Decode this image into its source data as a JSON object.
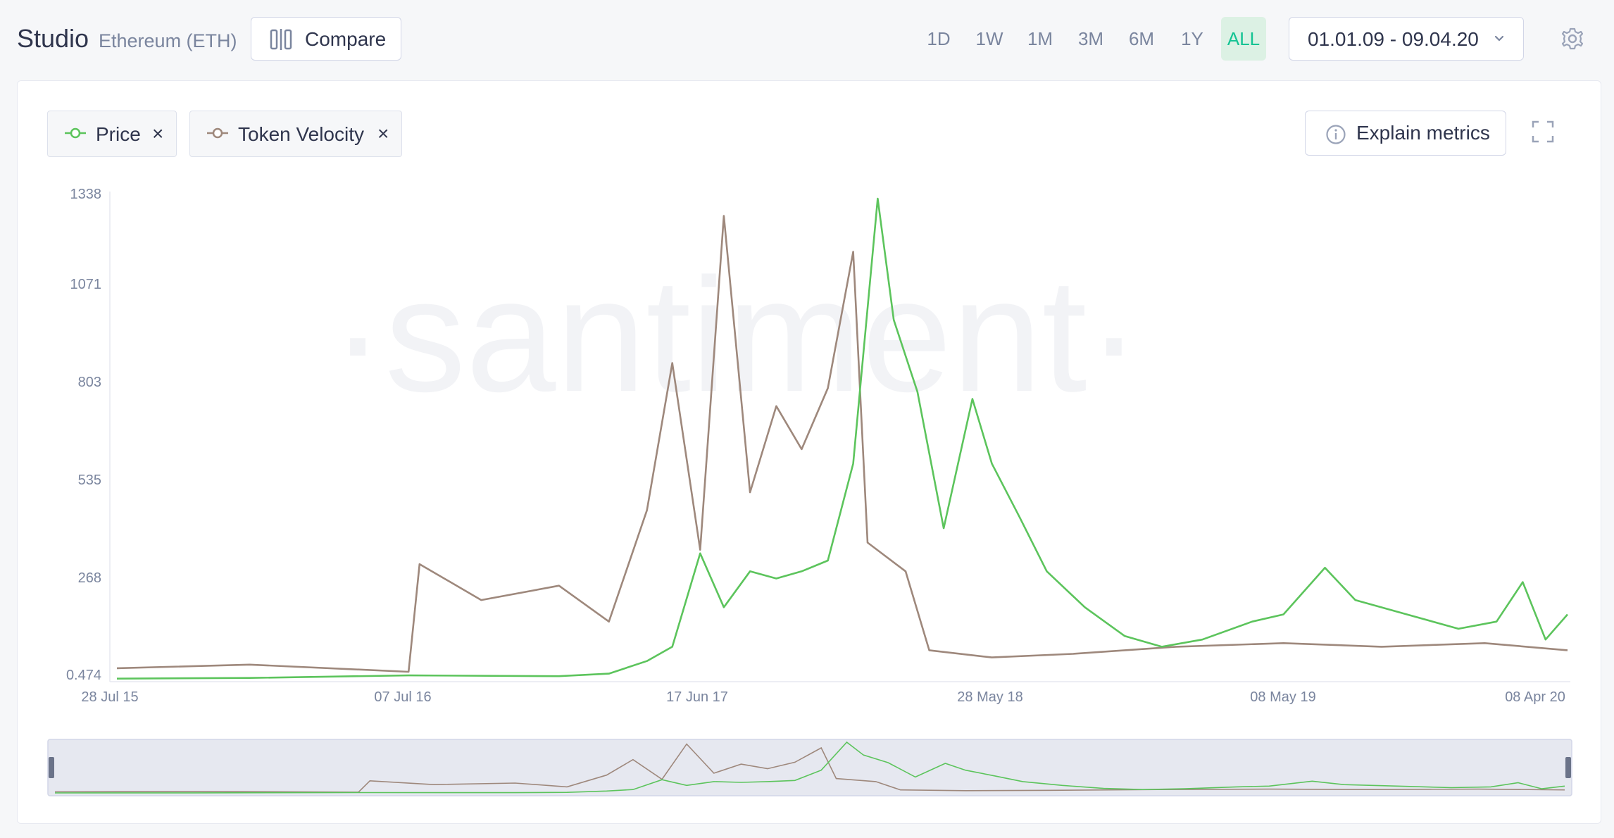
{
  "header": {
    "title": "Studio",
    "asset": "Ethereum (ETH)",
    "compare_label": "Compare",
    "ranges": [
      "1D",
      "1W",
      "1M",
      "3M",
      "6M",
      "1Y",
      "ALL"
    ],
    "active_range": "ALL",
    "date_range": "01.01.09 - 09.04.20"
  },
  "toolbar": {
    "explain_label": "Explain metrics"
  },
  "metrics": [
    {
      "label": "Price",
      "color": "#5cc45c",
      "remove": "×"
    },
    {
      "label": "Token Velocity",
      "color": "#9e887c",
      "remove": "×"
    }
  ],
  "watermark": "·santiment·",
  "colors": {
    "price": "#5cc45c",
    "velocity": "#9e887c",
    "accent": "#14c393",
    "navigator_bg": "#e6e8f0"
  },
  "chart_data": {
    "type": "line",
    "x_ticks": [
      "28 Jul 15",
      "07 Jul 16",
      "17 Jun 17",
      "28 May 18",
      "08 May 19",
      "08 Apr 20"
    ],
    "y_ticks": [
      "1338",
      "1071",
      "803",
      "535",
      "268",
      "0.474"
    ],
    "ylim": [
      0.474,
      1338
    ],
    "series": [
      {
        "name": "Price",
        "color": "#5cc45c",
        "x": [
          "2015-07-28",
          "2016-01-01",
          "2016-07-07",
          "2017-01-01",
          "2017-03-01",
          "2017-04-15",
          "2017-05-15",
          "2017-06-17",
          "2017-07-15",
          "2017-08-15",
          "2017-09-15",
          "2017-10-15",
          "2017-11-15",
          "2017-12-15",
          "2018-01-13",
          "2018-02-01",
          "2018-03-01",
          "2018-04-01",
          "2018-05-05",
          "2018-05-28",
          "2018-06-30",
          "2018-08-01",
          "2018-09-15",
          "2018-11-01",
          "2018-12-15",
          "2019-02-01",
          "2019-04-01",
          "2019-05-08",
          "2019-06-26",
          "2019-08-01",
          "2019-10-01",
          "2019-12-01",
          "2020-01-15",
          "2020-02-15",
          "2020-03-13",
          "2020-04-08"
        ],
        "values": [
          1,
          3,
          10,
          8,
          15,
          50,
          90,
          350,
          200,
          300,
          280,
          300,
          330,
          600,
          1338,
          1000,
          800,
          420,
          780,
          600,
          450,
          300,
          200,
          120,
          90,
          110,
          160,
          180,
          310,
          220,
          180,
          140,
          160,
          270,
          110,
          180
        ]
      },
      {
        "name": "Token Velocity",
        "color": "#9e887c",
        "x": [
          "2015-07-28",
          "2016-01-01",
          "2016-07-07",
          "2016-07-20",
          "2016-10-01",
          "2017-01-01",
          "2017-03-01",
          "2017-04-15",
          "2017-05-15",
          "2017-06-17",
          "2017-07-15",
          "2017-08-15",
          "2017-09-15",
          "2017-10-15",
          "2017-11-15",
          "2017-12-15",
          "2018-01-01",
          "2018-02-15",
          "2018-03-15",
          "2018-05-28",
          "2018-09-01",
          "2019-01-01",
          "2019-05-08",
          "2019-09-01",
          "2020-01-01",
          "2020-04-08"
        ],
        "values": [
          30,
          40,
          20,
          320,
          220,
          260,
          160,
          470,
          880,
          360,
          1290,
          520,
          760,
          640,
          810,
          1190,
          380,
          300,
          80,
          60,
          70,
          90,
          100,
          90,
          100,
          80
        ]
      }
    ],
    "navigator": true
  }
}
